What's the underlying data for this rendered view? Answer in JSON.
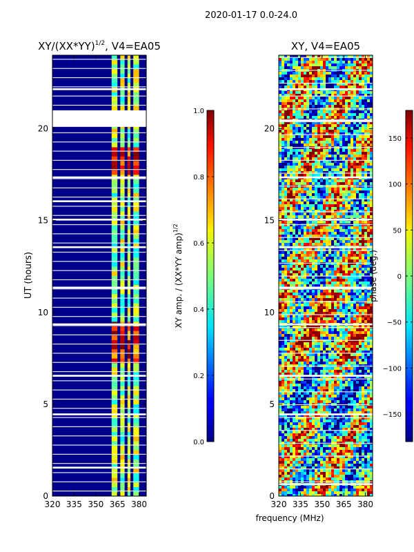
{
  "figure": {
    "suptitle": "2020-01-17 0.0-24.0",
    "shared_xlabel": "frequency (MHz)"
  },
  "chart_data": [
    {
      "type": "heatmap",
      "title_main": "XY/(XX*YY)",
      "title_sup": "1/2",
      "title_tail": ", V4=EA05",
      "xlabel": "",
      "ylabel": "UT (hours)",
      "xlim": [
        320,
        385
      ],
      "ylim": [
        0,
        24
      ],
      "xticks": [
        320,
        335,
        350,
        365,
        380
      ],
      "yticks": [
        0,
        5,
        10,
        15,
        20
      ],
      "bright_bands_mhz": [
        [
          361,
          365
        ],
        [
          367,
          370
        ],
        [
          372,
          374
        ],
        [
          376,
          380
        ]
      ],
      "flag_gaps_hours": [
        [
          20.1,
          21.0
        ],
        [
          22.1,
          22.2
        ],
        [
          17.3,
          17.4
        ],
        [
          16.0,
          16.1
        ],
        [
          15.0,
          15.1
        ],
        [
          13.5,
          13.6
        ],
        [
          11.3,
          11.4
        ],
        [
          9.3,
          9.4
        ],
        [
          6.5,
          6.6
        ],
        [
          4.4,
          4.5
        ],
        [
          1.5,
          1.6
        ]
      ],
      "colorbar": {
        "label_main": "XY amp. / (XX*YY amp)",
        "label_sup": "1/2",
        "range": [
          0.0,
          1.0
        ],
        "ticks": [
          "0.0",
          "0.2",
          "0.4",
          "0.6",
          "0.8",
          "1.0"
        ],
        "tick_values": [
          0,
          0.2,
          0.4,
          0.6,
          0.8,
          1.0
        ],
        "colormap": "jet"
      }
    },
    {
      "type": "heatmap",
      "title_main": "XY, V4=EA05",
      "xlabel": "frequency (MHz)",
      "ylabel": "",
      "xlim": [
        320,
        385
      ],
      "ylim": [
        0,
        24
      ],
      "xticks": [
        320,
        335,
        350,
        365,
        380
      ],
      "yticks": [
        0,
        5,
        10,
        15,
        20
      ],
      "flag_gaps_hours": [
        [
          22.1,
          22.2
        ],
        [
          20.4,
          20.5
        ],
        [
          17.3,
          17.4
        ],
        [
          15.0,
          15.1
        ],
        [
          13.5,
          13.6
        ],
        [
          11.3,
          11.4
        ],
        [
          9.3,
          9.4
        ],
        [
          6.5,
          6.6
        ],
        [
          4.4,
          4.5
        ],
        [
          0.6,
          0.7
        ]
      ],
      "colorbar": {
        "label_main": "phase (deg.)",
        "range": [
          -180,
          180
        ],
        "ticks": [
          "−150",
          "−100",
          "−50",
          "0",
          "50",
          "100",
          "150"
        ],
        "tick_values": [
          -150,
          -100,
          -50,
          0,
          50,
          100,
          150
        ],
        "colormap": "jet"
      }
    }
  ]
}
